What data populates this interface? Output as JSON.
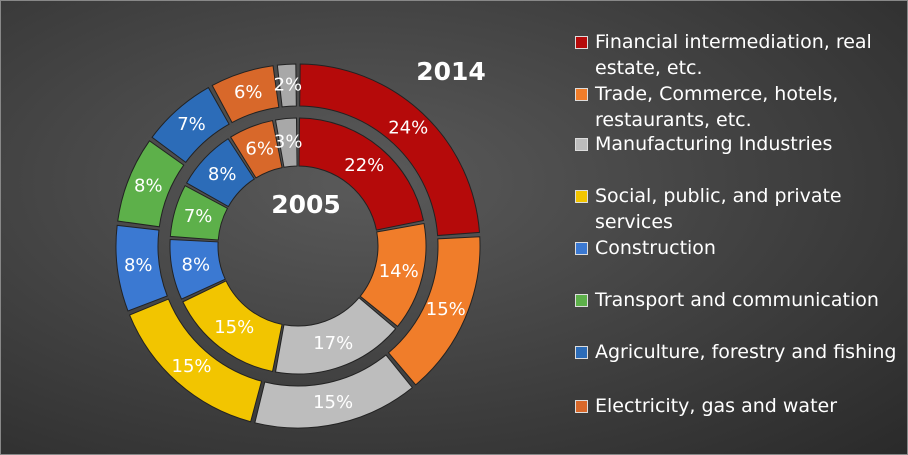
{
  "chart_data": {
    "type": "donut",
    "categories": [
      "Financial intermediation, real estate, etc.",
      "Trade, Commerce, hotels, restaurants, etc.",
      "Manufacturing Industries",
      "Social, public, and private services",
      "Construction",
      "Transport and communication",
      "Agriculture, forestry and fishing",
      "Electricity, gas and water",
      null
    ],
    "colors": [
      "#b50a0a",
      "#f07d2a",
      "#bdbdbd",
      "#f2c500",
      "#3b79d2",
      "#5db04a",
      "#2c6cb8",
      "#d8682a",
      "#a8a8a8"
    ],
    "series": [
      {
        "name": "2014",
        "values": [
          24,
          15,
          15,
          15,
          8,
          8,
          7,
          6,
          2
        ],
        "value_labels": [
          "24%",
          "15%",
          "15%",
          "15%",
          "8%",
          "8%",
          "7%",
          "6%",
          "2%"
        ]
      },
      {
        "name": "2005",
        "values": [
          22,
          14,
          17,
          15,
          8,
          7,
          8,
          6,
          3
        ],
        "value_labels": [
          "22%",
          "14%",
          "17%",
          "15%",
          "8%",
          "7%",
          "8%",
          "6%",
          "3%"
        ]
      }
    ]
  }
}
